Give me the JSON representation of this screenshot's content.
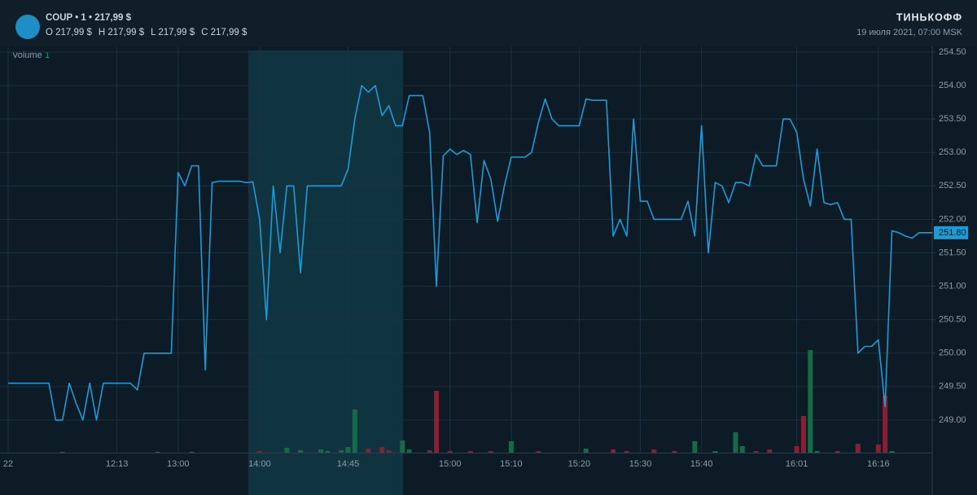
{
  "chart_data": {
    "type": "line",
    "header": {
      "symbol_line": "COUP • 1 • 217,99 $",
      "ohlc": [
        "O 217,99 $",
        "H 217,99 $",
        "L 217,99 $",
        "C 217,99 $"
      ],
      "brand": "ТИНЬКОФФ",
      "date": "19 июля 2021, 07:00 MSK"
    },
    "volume_label": "Volume",
    "volume_setting": "1",
    "categories": [
      "22",
      null,
      null,
      null,
      null,
      null,
      null,
      null,
      null,
      null,
      null,
      null,
      null,
      null,
      null,
      null,
      "12:13",
      null,
      null,
      null,
      null,
      null,
      null,
      null,
      null,
      "13:00",
      null,
      null,
      null,
      null,
      null,
      null,
      null,
      null,
      null,
      null,
      null,
      "14:00",
      null,
      null,
      null,
      null,
      null,
      null,
      null,
      null,
      null,
      null,
      null,
      null,
      "14:45",
      null,
      null,
      null,
      null,
      null,
      null,
      null,
      null,
      null,
      null,
      null,
      null,
      null,
      null,
      "15:00",
      null,
      null,
      null,
      null,
      null,
      null,
      null,
      null,
      "15:10",
      null,
      null,
      null,
      null,
      null,
      null,
      null,
      null,
      null,
      "15:20",
      null,
      null,
      null,
      null,
      null,
      null,
      null,
      null,
      "15:30",
      null,
      null,
      null,
      null,
      null,
      null,
      null,
      null,
      "15:40",
      null,
      null,
      null,
      null,
      null,
      null,
      null,
      null,
      null,
      null,
      null,
      null,
      null,
      "16:01",
      null,
      null,
      null,
      null,
      null,
      null,
      null,
      null,
      null,
      null,
      null,
      "16:16",
      null,
      null,
      null,
      null,
      null,
      null,
      null,
      null
    ],
    "series": [
      {
        "color": "#1e9ad6",
        "values": [
          249.55,
          249.55,
          249.55,
          249.55,
          249.55,
          249.55,
          249.55,
          249.0,
          249.0,
          249.55,
          249.25,
          249.0,
          249.55,
          249.0,
          249.55,
          249.55,
          249.55,
          249.55,
          249.55,
          249.45,
          250.0,
          250.0,
          250.0,
          250.0,
          250.0,
          252.7,
          252.5,
          252.8,
          252.8,
          249.75,
          252.55,
          252.57,
          252.57,
          252.57,
          252.57,
          252.55,
          252.56,
          252.0,
          250.5,
          252.5,
          251.5,
          252.5,
          252.5,
          251.2,
          252.5,
          252.5,
          252.5,
          252.5,
          252.5,
          252.5,
          252.75,
          253.5,
          254.0,
          253.9,
          254.0,
          253.55,
          253.7,
          253.4,
          253.4,
          253.85,
          253.85,
          253.85,
          253.3,
          251.0,
          252.95,
          253.05,
          252.97,
          253.03,
          252.97,
          251.95,
          252.88,
          252.6,
          251.97,
          252.5,
          252.93,
          252.93,
          252.93,
          253.0,
          253.45,
          253.8,
          253.5,
          253.4,
          253.4,
          253.4,
          253.4,
          253.8,
          253.78,
          253.78,
          253.78,
          251.75,
          252.0,
          251.75,
          253.5,
          252.27,
          252.27,
          252.0,
          252.0,
          252.0,
          252.0,
          252.0,
          252.27,
          251.75,
          253.4,
          251.5,
          252.55,
          252.5,
          252.25,
          252.55,
          252.55,
          252.5,
          252.97,
          252.8,
          252.8,
          252.8,
          253.5,
          253.5,
          253.3,
          252.6,
          252.2,
          253.05,
          252.25,
          252.22,
          252.25,
          252.0,
          252.0,
          250.0,
          250.1,
          250.1,
          250.2,
          249.2,
          251.83,
          251.8,
          251.75,
          251.72,
          251.8,
          251.8,
          251.8
        ]
      }
    ],
    "last_price": {
      "value": 251.8,
      "label": "251.80"
    },
    "ylim": [
      248.5,
      254.5
    ],
    "yticks": [
      {
        "value": 249,
        "label": "249.00"
      },
      {
        "value": 249.5,
        "label": "249.50"
      },
      {
        "value": 250,
        "label": "250.00"
      },
      {
        "value": 250.5,
        "label": "250.50"
      },
      {
        "value": 251,
        "label": "251.00"
      },
      {
        "value": 251.5,
        "label": "251.50"
      },
      {
        "value": 252,
        "label": "252.00"
      },
      {
        "value": 252.5,
        "label": "252.50"
      },
      {
        "value": 253,
        "label": "253.00"
      },
      {
        "value": 253.5,
        "label": "253.50"
      },
      {
        "value": 254,
        "label": "254.00"
      },
      {
        "value": 254.5,
        "label": "254.50"
      }
    ],
    "grid": true,
    "volume_colors": {
      "up": "#136b48",
      "down": "#8a1e37"
    },
    "volume": [
      {
        "at": 8,
        "value": 1,
        "up": true
      },
      {
        "at": 22,
        "value": 1,
        "up": true
      },
      {
        "at": 27,
        "value": 1,
        "up": true
      },
      {
        "at": 37,
        "value": 2,
        "up": false
      },
      {
        "at": 41,
        "value": 6,
        "up": true
      },
      {
        "at": 43,
        "value": 3,
        "up": true
      },
      {
        "at": 46,
        "value": 4,
        "up": true
      },
      {
        "at": 47,
        "value": 2,
        "up": true
      },
      {
        "at": 49,
        "value": 3,
        "up": true
      },
      {
        "at": 50,
        "value": 7,
        "up": true
      },
      {
        "at": 51,
        "value": 53,
        "up": true
      },
      {
        "at": 53,
        "value": 5,
        "up": false
      },
      {
        "at": 55,
        "value": 7,
        "up": false
      },
      {
        "at": 56,
        "value": 3,
        "up": false
      },
      {
        "at": 58,
        "value": 15,
        "up": true
      },
      {
        "at": 59,
        "value": 4,
        "up": true
      },
      {
        "at": 62,
        "value": 3,
        "up": false
      },
      {
        "at": 63,
        "value": 76,
        "up": false
      },
      {
        "at": 65,
        "value": 2,
        "up": false
      },
      {
        "at": 68,
        "value": 2,
        "up": false
      },
      {
        "at": 71,
        "value": 2,
        "up": false
      },
      {
        "at": 74,
        "value": 14,
        "up": true
      },
      {
        "at": 78,
        "value": 2,
        "up": false
      },
      {
        "at": 85,
        "value": 5,
        "up": true
      },
      {
        "at": 89,
        "value": 4,
        "up": false
      },
      {
        "at": 91,
        "value": 2,
        "up": false
      },
      {
        "at": 95,
        "value": 4,
        "up": false
      },
      {
        "at": 98,
        "value": 2,
        "up": false
      },
      {
        "at": 101,
        "value": 14,
        "up": true
      },
      {
        "at": 104,
        "value": 2,
        "up": true
      },
      {
        "at": 107,
        "value": 25,
        "up": true
      },
      {
        "at": 108,
        "value": 8,
        "up": true
      },
      {
        "at": 110,
        "value": 2,
        "up": false
      },
      {
        "at": 112,
        "value": 4,
        "up": false
      },
      {
        "at": 116,
        "value": 8,
        "up": false
      },
      {
        "at": 117,
        "value": 45,
        "up": false
      },
      {
        "at": 118,
        "value": 126,
        "up": true
      },
      {
        "at": 119,
        "value": 2,
        "up": true
      },
      {
        "at": 122,
        "value": 2,
        "up": false
      },
      {
        "at": 125,
        "value": 11,
        "up": false
      },
      {
        "at": 128,
        "value": 10,
        "up": false
      },
      {
        "at": 129,
        "value": 70,
        "up": false
      },
      {
        "at": 130,
        "value": 2,
        "up": true
      }
    ]
  }
}
